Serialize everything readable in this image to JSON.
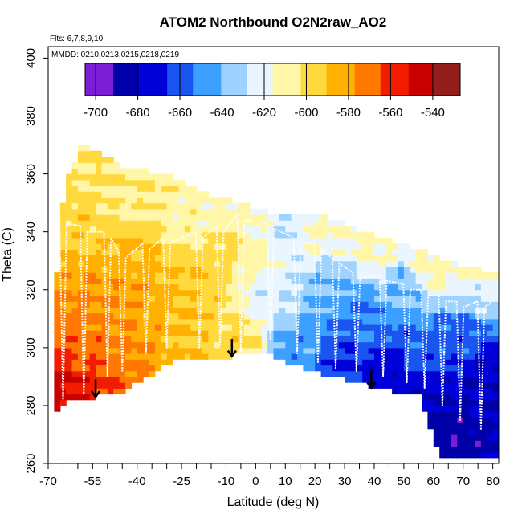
{
  "chart_data": {
    "type": "heatmap",
    "title": "ATOM2 Northbound O2N2raw_AO2",
    "subtitle_flights": "Flts: 6,7,8,9,10",
    "subtitle_dates": "MMDD: 0210,0213,0215,0218,0219",
    "xlabel": "Latitude (deg N)",
    "ylabel": "Theta (C)",
    "xlim": [
      -70,
      82
    ],
    "ylim": [
      260,
      404
    ],
    "x_ticks": [
      -70,
      -55,
      -40,
      -25,
      -10,
      0,
      10,
      20,
      30,
      40,
      50,
      60,
      70,
      80
    ],
    "x_ticks_minor": [
      -65,
      -60,
      -50,
      -45,
      -35,
      -30,
      -20,
      -15,
      -5,
      5,
      15,
      25,
      35,
      45,
      55,
      65,
      75
    ],
    "y_ticks": [
      260,
      280,
      300,
      320,
      340,
      360,
      380,
      400
    ],
    "colorbar": {
      "range": [
        -705,
        -527
      ],
      "ticks": [
        -700,
        -680,
        -660,
        -640,
        -620,
        -600,
        -580,
        -560,
        -540
      ],
      "colors": [
        "#7a1fd6",
        "#0000a8",
        "#0000d8",
        "#1a55f0",
        "#3ba0ff",
        "#9fd3ff",
        "#eaf6ff",
        "#fff6a8",
        "#ffd93d",
        "#ffb000",
        "#ff7800",
        "#f21d00",
        "#c70000",
        "#941d1d"
      ]
    },
    "bottom_boundary": [
      [
        -68,
        277
      ],
      [
        -66,
        280
      ],
      [
        -63,
        282
      ],
      [
        -58,
        283
      ],
      [
        -53,
        284
      ],
      [
        -46,
        285
      ],
      [
        -28,
        296
      ],
      [
        -15,
        297
      ],
      [
        -8,
        298
      ],
      [
        5,
        298
      ],
      [
        15,
        294
      ],
      [
        30,
        290
      ],
      [
        45,
        286
      ],
      [
        50,
        284
      ],
      [
        55,
        284
      ],
      [
        58,
        275
      ],
      [
        63,
        262
      ],
      [
        72,
        262
      ],
      [
        78,
        262
      ],
      [
        82,
        262
      ]
    ],
    "top_boundary": [
      [
        -68,
        310
      ],
      [
        -66,
        340
      ],
      [
        -64,
        357
      ],
      [
        -61,
        364
      ],
      [
        -59,
        370
      ],
      [
        -55,
        368
      ],
      [
        -45,
        362
      ],
      [
        -35,
        360
      ],
      [
        -25,
        357
      ],
      [
        -15,
        352
      ],
      [
        -5,
        349
      ],
      [
        5,
        346
      ],
      [
        20,
        345
      ],
      [
        30,
        342
      ],
      [
        40,
        338
      ],
      [
        50,
        335
      ],
      [
        60,
        331
      ],
      [
        70,
        327
      ],
      [
        77,
        326
      ],
      [
        80,
        325
      ]
    ],
    "anchors": [
      {
        "lat": -68,
        "theta": 280,
        "value": -548
      },
      {
        "lat": -60,
        "theta": 285,
        "value": -552
      },
      {
        "lat": -55,
        "theta": 300,
        "value": -570
      },
      {
        "lat": -52,
        "theta": 290,
        "value": -562
      },
      {
        "lat": -50,
        "theta": 310,
        "value": -578
      },
      {
        "lat": -45,
        "theta": 298,
        "value": -575
      },
      {
        "lat": -42,
        "theta": 320,
        "value": -580
      },
      {
        "lat": -40,
        "theta": 330,
        "value": -587
      },
      {
        "lat": -35,
        "theta": 312,
        "value": -585
      },
      {
        "lat": -25,
        "theta": 305,
        "value": -590
      },
      {
        "lat": -20,
        "theta": 325,
        "value": -592
      },
      {
        "lat": -10,
        "theta": 335,
        "value": -598
      },
      {
        "lat": -8,
        "theta": 302,
        "value": -598
      },
      {
        "lat": 0,
        "theta": 330,
        "value": -610
      },
      {
        "lat": 5,
        "theta": 320,
        "value": -625
      },
      {
        "lat": 10,
        "theta": 340,
        "value": -628
      },
      {
        "lat": 15,
        "theta": 300,
        "value": -648
      },
      {
        "lat": 25,
        "theta": 320,
        "value": -642
      },
      {
        "lat": 30,
        "theta": 295,
        "value": -668
      },
      {
        "lat": 35,
        "theta": 310,
        "value": -655
      },
      {
        "lat": 45,
        "theta": 290,
        "value": -675
      },
      {
        "lat": 50,
        "theta": 320,
        "value": -640
      },
      {
        "lat": 55,
        "theta": 300,
        "value": -660
      },
      {
        "lat": 60,
        "theta": 280,
        "value": -680
      },
      {
        "lat": 65,
        "theta": 270,
        "value": -688
      },
      {
        "lat": 70,
        "theta": 305,
        "value": -660
      },
      {
        "lat": 75,
        "theta": 320,
        "value": -630
      },
      {
        "lat": 78,
        "theta": 290,
        "value": -678
      },
      {
        "lat": -62,
        "theta": 350,
        "value": -597
      },
      {
        "lat": -55,
        "theta": 360,
        "value": -603
      },
      {
        "lat": -40,
        "theta": 350,
        "value": -605
      },
      {
        "lat": -25,
        "theta": 345,
        "value": -610
      },
      {
        "lat": -15,
        "theta": 345,
        "value": -612
      },
      {
        "lat": 0,
        "theta": 343,
        "value": -615
      },
      {
        "lat": 20,
        "theta": 340,
        "value": -615
      },
      {
        "lat": 40,
        "theta": 335,
        "value": -612
      },
      {
        "lat": 60,
        "theta": 328,
        "value": -610
      },
      {
        "lat": 75,
        "theta": 325,
        "value": -607
      }
    ],
    "flight_tracks": [
      {
        "lat": -65,
        "top": 345,
        "bottom": 282
      },
      {
        "lat": -58,
        "top": 342,
        "bottom": 284
      },
      {
        "lat": -50,
        "top": 340,
        "bottom": 290
      },
      {
        "lat": -45,
        "top": 333,
        "bottom": 292
      },
      {
        "lat": -37,
        "top": 336,
        "bottom": 298
      },
      {
        "lat": -30,
        "top": 338,
        "bottom": 300
      },
      {
        "lat": -19,
        "top": 340,
        "bottom": 300
      },
      {
        "lat": -12,
        "top": 342,
        "bottom": 301
      },
      {
        "lat": -5,
        "top": 346,
        "bottom": 299
      },
      {
        "lat": 5,
        "top": 343,
        "bottom": 303
      },
      {
        "lat": 14,
        "top": 338,
        "bottom": 298
      },
      {
        "lat": 21,
        "top": 336,
        "bottom": 295
      },
      {
        "lat": 27,
        "top": 331,
        "bottom": 293
      },
      {
        "lat": 34,
        "top": 326,
        "bottom": 292
      },
      {
        "lat": 43,
        "top": 325,
        "bottom": 290
      },
      {
        "lat": 51,
        "top": 322,
        "bottom": 288
      },
      {
        "lat": 57,
        "top": 320,
        "bottom": 286
      },
      {
        "lat": 63,
        "top": 318,
        "bottom": 280
      },
      {
        "lat": 69,
        "top": 316,
        "bottom": 275
      },
      {
        "lat": 76,
        "top": 316,
        "bottom": 272
      }
    ],
    "arrows": [
      {
        "lat": -54,
        "theta_top": 289,
        "theta_tip": 283
      },
      {
        "lat": -8,
        "theta_top": 303,
        "theta_tip": 297
      },
      {
        "lat": 39,
        "theta_top": 292,
        "theta_tip": 286
      }
    ]
  }
}
